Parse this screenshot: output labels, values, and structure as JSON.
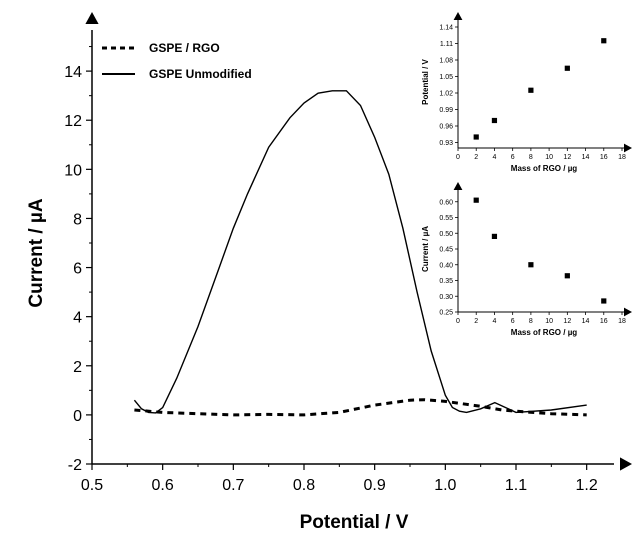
{
  "chart_data": [
    {
      "type": "line",
      "xlabel": "Potential / V",
      "ylabel": "Current / µA",
      "xlim": [
        0.5,
        1.25
      ],
      "ylim": [
        -2,
        16
      ],
      "x_ticks": [
        "0.5",
        "0.6",
        "0.7",
        "0.8",
        "0.9",
        "1.0",
        "1.1",
        "1.2"
      ],
      "y_ticks": [
        "-2",
        "0",
        "2",
        "4",
        "6",
        "8",
        "10",
        "12",
        "14"
      ],
      "legend_position": "top-left",
      "series": [
        {
          "name": "GSPE / RGO",
          "style": "dashed",
          "x": [
            0.56,
            0.6,
            0.65,
            0.7,
            0.75,
            0.8,
            0.85,
            0.9,
            0.95,
            0.97,
            1.0,
            1.05,
            1.08,
            1.1,
            1.15,
            1.2
          ],
          "y": [
            0.2,
            0.1,
            0.05,
            0.0,
            0.02,
            0.0,
            0.1,
            0.4,
            0.6,
            0.62,
            0.55,
            0.35,
            0.2,
            0.15,
            0.05,
            0.0
          ]
        },
        {
          "name": "GSPE Unmodified",
          "style": "solid",
          "x": [
            0.56,
            0.57,
            0.58,
            0.59,
            0.6,
            0.62,
            0.65,
            0.68,
            0.7,
            0.72,
            0.75,
            0.78,
            0.8,
            0.82,
            0.84,
            0.86,
            0.88,
            0.9,
            0.92,
            0.94,
            0.96,
            0.98,
            1.0,
            1.01,
            1.02,
            1.03,
            1.05,
            1.07,
            1.1,
            1.15,
            1.2
          ],
          "y": [
            0.6,
            0.25,
            0.1,
            0.08,
            0.3,
            1.5,
            3.6,
            6.0,
            7.6,
            9.0,
            10.9,
            12.1,
            12.7,
            13.1,
            13.2,
            13.2,
            12.6,
            11.3,
            9.8,
            7.6,
            5.0,
            2.6,
            0.8,
            0.3,
            0.15,
            0.1,
            0.25,
            0.5,
            0.1,
            0.2,
            0.4
          ]
        }
      ]
    },
    {
      "type": "scatter",
      "xlabel": "Mass of RGO / µg",
      "ylabel": "Potential / V",
      "xlim": [
        0,
        18
      ],
      "ylim": [
        0.92,
        1.16
      ],
      "x_ticks": [
        "0",
        "2",
        "4",
        "6",
        "8",
        "10",
        "12",
        "14",
        "16",
        "18"
      ],
      "y_ticks": [
        "0.93",
        "0.96",
        "0.99",
        "1.02",
        "1.05",
        "1.08",
        "1.11",
        "1.14"
      ],
      "x": [
        2,
        4,
        8,
        12,
        16
      ],
      "y": [
        0.94,
        0.97,
        1.025,
        1.065,
        1.115
      ]
    },
    {
      "type": "scatter",
      "xlabel": "Mass of RGO / µg",
      "ylabel": "Current / µA",
      "xlim": [
        0,
        18
      ],
      "ylim": [
        0.25,
        0.65
      ],
      "x_ticks": [
        "0",
        "2",
        "4",
        "6",
        "8",
        "10",
        "12",
        "14",
        "16",
        "18"
      ],
      "y_ticks": [
        "0.25",
        "0.30",
        "0.35",
        "0.40",
        "0.45",
        "0.50",
        "0.55",
        "0.60"
      ],
      "x": [
        2,
        4,
        8,
        12,
        16
      ],
      "y": [
        0.605,
        0.49,
        0.4,
        0.365,
        0.285
      ]
    }
  ]
}
